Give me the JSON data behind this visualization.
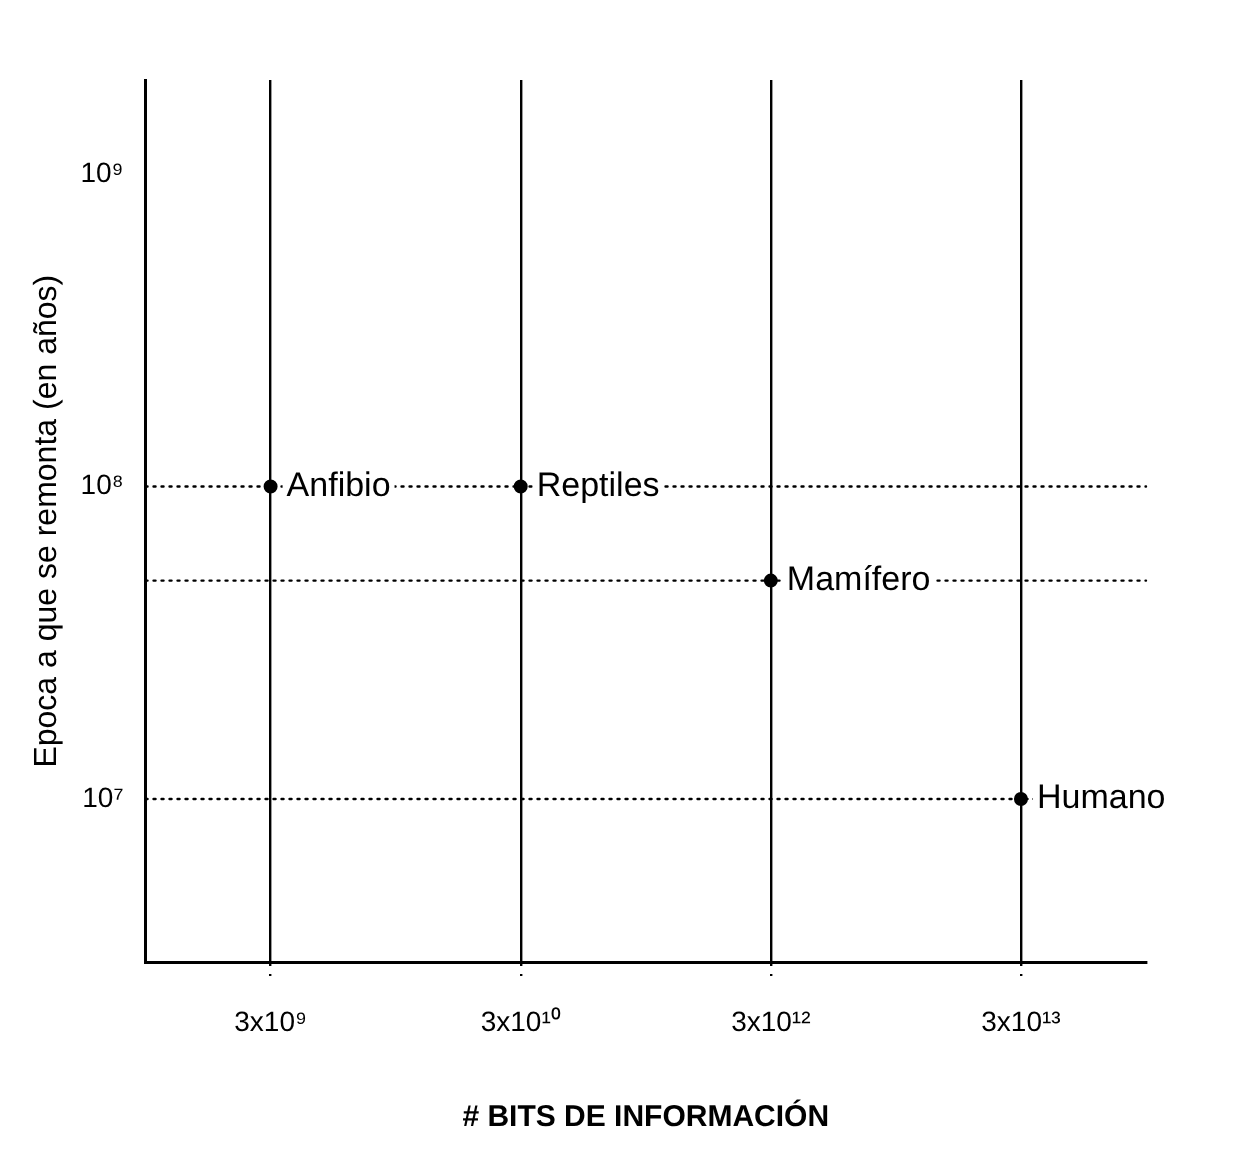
{
  "chart_data": {
    "type": "scatter",
    "xlabel": "# BITS DE INFORMACIÓN",
    "ylabel": "Epoca a que se remonta (en años)",
    "categories": [
      "3x10⁹",
      "3x10¹⁰",
      "3x10¹²",
      "3x10¹³"
    ],
    "series": [
      {
        "color": "#000000",
        "values": [
          100000000,
          100000000,
          50000000,
          10000000
        ]
      }
    ],
    "log": "y",
    "ylim": [
      3000000,
      2000000000
    ],
    "yticks": [
      {
        "value": 10000000,
        "label": "10⁷"
      },
      {
        "value": 100000000,
        "label": "10⁸"
      },
      {
        "value": 1000000000,
        "label": "10⁹"
      }
    ],
    "grid": "x",
    "marker": "circle",
    "ref_lines": [
      {
        "axis": "y",
        "value": 100000000,
        "line_style": "dotted",
        "color": "#000000"
      },
      {
        "axis": "y",
        "value": 50000000,
        "line_style": "dotted",
        "color": "#000000"
      },
      {
        "axis": "y",
        "value": 10000000,
        "line_style": "dotted",
        "color": "#000000"
      }
    ],
    "annotations": [
      {
        "text": "Anfibio",
        "x": "3x10⁹",
        "y": 100000000
      },
      {
        "text": "Reptiles",
        "x": "3x10¹⁰",
        "y": 100000000
      },
      {
        "text": "Mamífero",
        "x": "3x10¹²",
        "y": 50000000
      },
      {
        "text": "Humano",
        "x": "3x10¹³",
        "y": 10000000
      }
    ]
  }
}
